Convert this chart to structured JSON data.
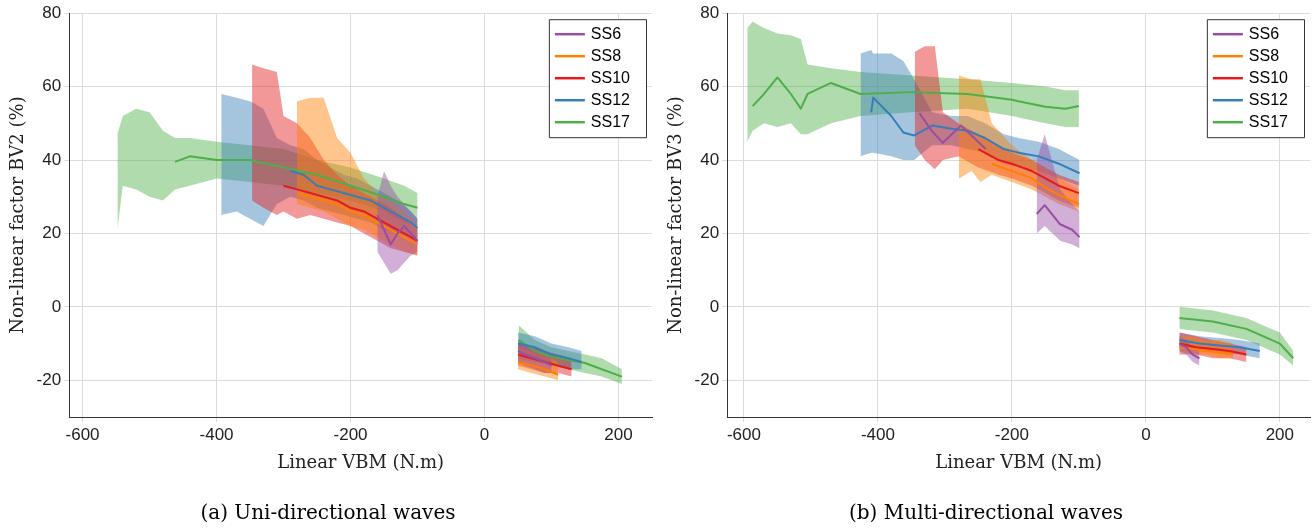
{
  "chart_data": [
    {
      "type": "line",
      "title": "(a) Uni-directional waves",
      "xlabel": "Linear VBM (N.m)",
      "ylabel": "Non-linear factor BV2 (%)",
      "xlim": [
        -620,
        250
      ],
      "ylim": [
        -30,
        80
      ],
      "xticks": [
        -600,
        -400,
        -200,
        0,
        200
      ],
      "yticks": [
        -20,
        0,
        20,
        40,
        60,
        80
      ],
      "grid": true,
      "legend": "top right",
      "series": [
        {
          "name": "SS6",
          "color": "#984ea3",
          "x": [
            -160,
            -150,
            -140,
            -130,
            -120,
            -110,
            -100,
            0,
            50,
            60,
            75,
            90,
            100
          ],
          "values": [
            25,
            21,
            17,
            20,
            22,
            20,
            18,
            null,
            -12,
            -13,
            -14,
            -15,
            -16
          ],
          "lower": [
            15,
            12,
            9,
            10,
            12,
            14,
            15,
            null,
            -15,
            -16,
            -17,
            -18,
            -18
          ],
          "upper": [
            30,
            37,
            33,
            30,
            28,
            26,
            24,
            null,
            -9,
            -10,
            -11,
            -12,
            -13
          ]
        },
        {
          "name": "SS8",
          "color": "#ff7f00",
          "x": [
            -280,
            -260,
            -240,
            -220,
            -200,
            -180,
            -160,
            -140,
            -120,
            -100,
            0,
            50,
            70,
            90,
            110
          ],
          "values": [
            31,
            30,
            29,
            28,
            26,
            25,
            23,
            21,
            19,
            17,
            null,
            -15,
            -16,
            -17,
            -18.5
          ],
          "lower": [
            28,
            27,
            26,
            24,
            22,
            21,
            19,
            17,
            15,
            14,
            null,
            -17,
            -18,
            -19,
            -20
          ],
          "upper": [
            56,
            57,
            57,
            46,
            42,
            35,
            31,
            29,
            26,
            22,
            null,
            -11,
            -12,
            -13,
            -15
          ]
        },
        {
          "name": "SS10",
          "color": "#e41a1c",
          "x": [
            -347,
            -330,
            -310,
            -300,
            -280,
            -260,
            -240,
            -220,
            -200,
            -180,
            -160,
            -140,
            -120,
            -100,
            0,
            50,
            70,
            90,
            110,
            130
          ],
          "values": [
            null,
            null,
            null,
            33,
            32,
            31,
            30,
            29,
            27,
            26,
            24,
            22,
            20,
            18,
            null,
            -13,
            -14,
            -15,
            -16,
            -17
          ],
          "lower": [
            29,
            27,
            25,
            26,
            24,
            25,
            24,
            23,
            22,
            20,
            18,
            16,
            15,
            14,
            null,
            -16,
            -17,
            -18,
            -18,
            -19
          ],
          "upper": [
            66,
            65,
            64,
            52,
            50,
            46,
            40,
            36,
            33,
            31,
            29,
            27,
            24,
            21,
            null,
            -10,
            -11,
            -12,
            -13,
            -14
          ]
        },
        {
          "name": "SS12",
          "color": "#377eb8",
          "x": [
            -393,
            -370,
            -350,
            -330,
            -310,
            -290,
            -270,
            -250,
            -230,
            -210,
            -190,
            -170,
            -150,
            -130,
            -110,
            -100,
            0,
            50,
            75,
            100,
            125,
            145
          ],
          "values": [
            null,
            null,
            null,
            null,
            null,
            37,
            36,
            33,
            32,
            31,
            30,
            29,
            27,
            25,
            23,
            21.5,
            null,
            -10,
            -11,
            -13,
            -14,
            -15
          ],
          "lower": [
            25,
            26,
            24,
            22,
            28,
            30,
            29,
            27,
            26,
            25,
            24,
            23,
            21,
            20,
            19,
            18,
            null,
            -13,
            -14,
            -16,
            -17,
            -17
          ],
          "upper": [
            58,
            57,
            56,
            54,
            46,
            44,
            43,
            40,
            38,
            36,
            35,
            33,
            31,
            29,
            26,
            24,
            null,
            -7,
            -8,
            -10,
            -11,
            -12
          ]
        },
        {
          "name": "SS17",
          "color": "#4daf4a",
          "x": [
            -548,
            -540,
            -520,
            -500,
            -480,
            -462,
            -440,
            -400,
            -350,
            -300,
            -250,
            -200,
            -150,
            -120,
            -100,
            0,
            51,
            75,
            100,
            125,
            150,
            175,
            205
          ],
          "values": [
            null,
            null,
            null,
            null,
            null,
            39.5,
            41,
            40,
            40,
            38,
            36,
            33,
            30,
            28,
            27,
            null,
            -9,
            -12,
            -13.5,
            -14.5,
            -15.3,
            -17,
            -19
          ],
          "lower": [
            21,
            33,
            32,
            30,
            29,
            32,
            33,
            35,
            34,
            33,
            31,
            29,
            26,
            23,
            22,
            null,
            -14,
            -15,
            -16,
            -17,
            -18,
            -19,
            -21
          ],
          "upper": [
            47,
            52,
            54,
            53,
            48,
            46,
            46,
            45,
            44,
            43,
            40,
            38,
            35,
            33,
            31,
            null,
            -5,
            -9,
            -11,
            -12,
            -13,
            -14,
            -17
          ]
        }
      ]
    },
    {
      "type": "line",
      "title": "(b) Multi-directional waves",
      "xlabel": "Linear VBM (N.m)",
      "ylabel": "Non-linear factor BV3 (%)",
      "xlim": [
        -625,
        245
      ],
      "ylim": [
        -30,
        80
      ],
      "xticks": [
        -600,
        -400,
        -200,
        0,
        200
      ],
      "yticks": [
        -20,
        0,
        20,
        40,
        60,
        80
      ],
      "grid": true,
      "legend": "top right",
      "series": [
        {
          "name": "SS6",
          "color": "#984ea3",
          "x": [
            -338,
            -320,
            -303,
            -276,
            -239,
            -200,
            -170,
            -163,
            -151,
            -128,
            -110,
            -99,
            0,
            50,
            60,
            70,
            80
          ],
          "values": [
            52.8,
            48,
            44.7,
            49.4,
            43,
            null,
            null,
            25.3,
            27.7,
            22.5,
            21,
            19,
            null,
            -10,
            -11,
            -13,
            -14
          ],
          "lower": [
            null,
            null,
            null,
            null,
            null,
            null,
            null,
            20,
            22,
            18,
            17,
            16,
            null,
            -12,
            -13,
            -15,
            -16
          ],
          "upper": [
            null,
            null,
            null,
            null,
            null,
            null,
            null,
            40,
            47,
            32,
            28,
            26,
            null,
            -8,
            -9,
            -11,
            -12
          ]
        },
        {
          "name": "SS8",
          "color": "#ff7f00",
          "x": [
            -279,
            -260,
            -247,
            -230,
            -200,
            -170,
            -150,
            -130,
            -100,
            0,
            50,
            70,
            90,
            110,
            130
          ],
          "values": [
            null,
            null,
            null,
            39,
            37,
            35,
            32.5,
            30.5,
            28,
            null,
            -11,
            -11.5,
            -12,
            -12.5,
            -13
          ],
          "lower": [
            35,
            37,
            34,
            36,
            34,
            32,
            30,
            28,
            26,
            null,
            -12,
            -13,
            -13,
            -14,
            -14
          ],
          "upper": [
            63,
            62,
            62,
            50,
            44,
            40,
            38,
            35,
            32,
            null,
            -8,
            -8,
            -9,
            -9,
            -10
          ]
        },
        {
          "name": "SS10",
          "color": "#e41a1c",
          "x": [
            -345,
            -330,
            -315,
            -303,
            -280,
            -250,
            -220,
            -200,
            -170,
            -150,
            -130,
            -100,
            0,
            50,
            75,
            100,
            125,
            150
          ],
          "values": [
            null,
            null,
            null,
            null,
            null,
            43,
            40,
            39,
            37,
            35,
            33,
            31,
            null,
            -10,
            -11,
            -11.5,
            -12,
            -13
          ],
          "lower": [
            44,
            40,
            37.5,
            40,
            41,
            38,
            36,
            35,
            33,
            31,
            29,
            27,
            null,
            -13,
            -13,
            -14,
            -14,
            -15
          ],
          "upper": [
            69.5,
            71,
            71,
            53,
            50,
            47,
            44,
            42,
            40,
            38,
            36,
            34,
            null,
            -7,
            -8,
            -9,
            -10,
            -11
          ]
        },
        {
          "name": "SS12",
          "color": "#377eb8",
          "x": [
            -426,
            -410,
            -407,
            -380,
            -362,
            -346,
            -319,
            -290,
            -266,
            -240,
            -212,
            -190,
            -160,
            -130,
            -99,
            0,
            50,
            80,
            110,
            140,
            170
          ],
          "values": [
            null,
            53,
            57,
            52,
            47.5,
            46.7,
            49.4,
            48.5,
            48,
            46,
            43,
            42,
            41,
            39,
            36.4,
            null,
            -9,
            -10,
            -10.5,
            -11,
            -12
          ],
          "lower": [
            41,
            42,
            42,
            41,
            40,
            40,
            44,
            44,
            43,
            42,
            39,
            38,
            37,
            35,
            33,
            null,
            -11,
            -12,
            -12.5,
            -13,
            -14
          ],
          "upper": [
            69,
            70,
            69,
            69,
            67,
            62,
            53,
            52,
            52,
            50,
            47,
            46,
            45,
            43,
            40,
            null,
            -7,
            -8,
            -8.5,
            -9,
            -10
          ]
        },
        {
          "name": "SS17",
          "color": "#4daf4a",
          "x": [
            -595,
            -587,
            -570,
            -550,
            -530,
            -515,
            -505,
            -470,
            -426,
            -350,
            -266,
            -200,
            -150,
            -120,
            -100,
            0,
            50,
            100,
            150,
            200,
            220
          ],
          "values": [
            null,
            54.7,
            58,
            62.5,
            58,
            54,
            58,
            61,
            58,
            58.5,
            58,
            56.4,
            54.5,
            54,
            54.7,
            null,
            -3,
            -4,
            -6,
            -10,
            -14
          ],
          "lower": [
            45,
            48,
            50,
            49,
            50,
            47,
            47,
            50,
            52,
            53,
            54,
            52,
            50,
            49,
            49,
            null,
            -6,
            -7,
            -9,
            -13,
            -16
          ],
          "upper": [
            76,
            77.7,
            76,
            74.5,
            74,
            73,
            66,
            65,
            64,
            63,
            62,
            61,
            60,
            59,
            59,
            null,
            0,
            -1,
            -3,
            -7,
            -12
          ]
        }
      ]
    }
  ]
}
